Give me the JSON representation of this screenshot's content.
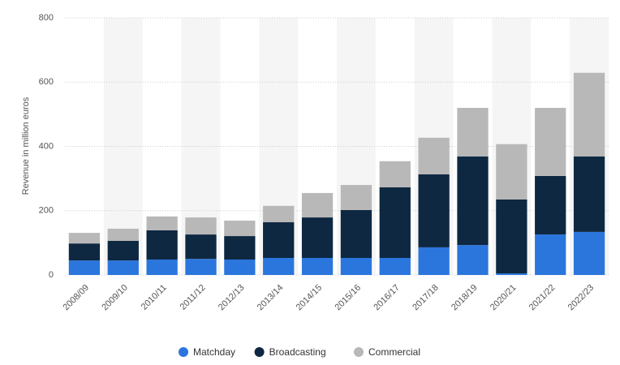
{
  "chart_data": {
    "type": "bar",
    "stacked": true,
    "y_label": "Revenue in million euros",
    "categories": [
      "2008/09",
      "2009/10",
      "2010/11",
      "2011/12",
      "2012/13",
      "2013/14",
      "2014/15",
      "2015/16",
      "2016/17",
      "2017/18",
      "2018/19",
      "2020/21",
      "2021/22",
      "2022/23"
    ],
    "series": [
      {
        "name": "Matchday",
        "color": "#2a76dd",
        "values": [
          45,
          45,
          48,
          50,
          48,
          53,
          53,
          53,
          53,
          86,
          93,
          5,
          126,
          134
        ]
      },
      {
        "name": "Broadcasting",
        "color": "#0e2841",
        "values": [
          53,
          61,
          91,
          76,
          73,
          111,
          126,
          149,
          220,
          227,
          276,
          230,
          182,
          235
        ]
      },
      {
        "name": "Commercial",
        "color": "#b8b8b8",
        "values": [
          33,
          38,
          43,
          53,
          48,
          51,
          76,
          78,
          81,
          114,
          151,
          172,
          212,
          260
        ]
      }
    ],
    "ylim": [
      0,
      800
    ],
    "yticks": [
      0,
      200,
      400,
      600,
      800
    ],
    "grid": true
  }
}
